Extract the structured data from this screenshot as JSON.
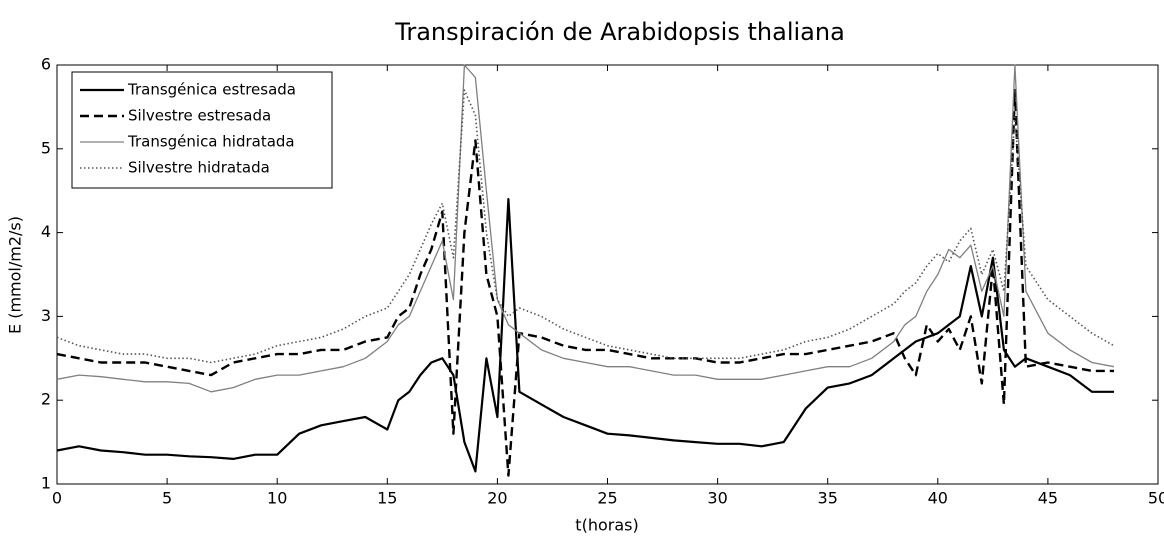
{
  "chart_data": {
    "type": "line",
    "title": "Transpiración de Arabidopsis thaliana",
    "xlabel": "t(horas)",
    "ylabel": "E (mmol/m2/s)",
    "x": [
      0,
      1,
      2,
      3,
      4,
      5,
      6,
      7,
      8,
      9,
      10,
      11,
      12,
      13,
      14,
      15,
      15.5,
      16,
      16.5,
      17,
      17.5,
      18,
      18.5,
      19,
      19.5,
      20,
      20.5,
      21,
      22,
      23,
      24,
      25,
      26,
      27,
      28,
      29,
      30,
      31,
      32,
      33,
      34,
      35,
      36,
      37,
      38,
      38.5,
      39,
      39.5,
      40,
      40.5,
      41,
      41.5,
      42,
      42.5,
      43,
      43.5,
      44,
      45,
      46,
      47,
      48
    ],
    "series": [
      {
        "name": "Transgénica estresada",
        "color": "#000000",
        "dash": "solid",
        "width": 2.2,
        "values": [
          1.4,
          1.45,
          1.4,
          1.38,
          1.35,
          1.35,
          1.33,
          1.32,
          1.3,
          1.35,
          1.35,
          1.6,
          1.7,
          1.75,
          1.8,
          1.65,
          2.0,
          2.1,
          2.3,
          2.45,
          2.5,
          2.3,
          1.5,
          1.15,
          2.5,
          1.8,
          4.4,
          2.1,
          1.95,
          1.8,
          1.7,
          1.6,
          1.58,
          1.55,
          1.52,
          1.5,
          1.48,
          1.48,
          1.45,
          1.5,
          1.9,
          2.15,
          2.2,
          2.3,
          2.5,
          2.6,
          2.7,
          2.75,
          2.8,
          2.9,
          3.0,
          3.6,
          3.0,
          3.7,
          2.6,
          2.4,
          2.5,
          2.4,
          2.3,
          2.1,
          2.1
        ]
      },
      {
        "name": "Silvestre estresada",
        "color": "#000000",
        "dash": "dashed",
        "width": 2.4,
        "values": [
          2.55,
          2.5,
          2.45,
          2.45,
          2.45,
          2.4,
          2.35,
          2.3,
          2.45,
          2.5,
          2.55,
          2.55,
          2.6,
          2.6,
          2.7,
          2.75,
          3.0,
          3.1,
          3.5,
          3.8,
          4.25,
          1.6,
          4.0,
          5.1,
          3.5,
          3.0,
          1.1,
          2.8,
          2.75,
          2.65,
          2.6,
          2.6,
          2.55,
          2.5,
          2.5,
          2.5,
          2.45,
          2.45,
          2.5,
          2.55,
          2.55,
          2.6,
          2.65,
          2.7,
          2.8,
          2.5,
          2.3,
          2.9,
          2.7,
          2.85,
          2.6,
          3.0,
          2.2,
          3.6,
          1.95,
          5.7,
          2.4,
          2.45,
          2.4,
          2.35,
          2.35
        ]
      },
      {
        "name": "Transgénica hidratada",
        "color": "#808080",
        "dash": "solid",
        "width": 1.3,
        "values": [
          2.25,
          2.3,
          2.28,
          2.25,
          2.22,
          2.22,
          2.2,
          2.1,
          2.15,
          2.25,
          2.3,
          2.3,
          2.35,
          2.4,
          2.5,
          2.7,
          2.9,
          3.0,
          3.3,
          3.6,
          3.9,
          3.2,
          6.0,
          5.85,
          4.5,
          3.2,
          2.9,
          2.8,
          2.6,
          2.5,
          2.45,
          2.4,
          2.4,
          2.35,
          2.3,
          2.3,
          2.25,
          2.25,
          2.25,
          2.3,
          2.35,
          2.4,
          2.4,
          2.5,
          2.7,
          2.9,
          3.0,
          3.3,
          3.5,
          3.8,
          3.7,
          3.85,
          3.3,
          3.6,
          3.0,
          6.0,
          3.3,
          2.8,
          2.6,
          2.45,
          2.4
        ]
      },
      {
        "name": "Silvestre hidratada",
        "color": "#555555",
        "dash": "dotted",
        "width": 1.6,
        "values": [
          2.75,
          2.65,
          2.6,
          2.55,
          2.55,
          2.5,
          2.5,
          2.45,
          2.5,
          2.55,
          2.65,
          2.7,
          2.75,
          2.85,
          3.0,
          3.1,
          3.3,
          3.5,
          3.8,
          4.1,
          4.35,
          3.7,
          5.7,
          5.4,
          4.0,
          3.2,
          3.0,
          3.1,
          3.0,
          2.85,
          2.75,
          2.65,
          2.6,
          2.55,
          2.5,
          2.5,
          2.5,
          2.5,
          2.55,
          2.6,
          2.7,
          2.75,
          2.85,
          3.0,
          3.15,
          3.3,
          3.4,
          3.6,
          3.75,
          3.65,
          3.9,
          4.05,
          3.5,
          3.8,
          3.3,
          5.4,
          3.6,
          3.2,
          3.0,
          2.8,
          2.65
        ]
      }
    ],
    "xlim": [
      0,
      50
    ],
    "xticks": [
      0,
      5,
      10,
      15,
      20,
      25,
      30,
      35,
      40,
      45,
      50
    ],
    "ylim": [
      1,
      6
    ],
    "yticks": [
      1,
      2,
      3,
      4,
      5,
      6
    ],
    "legend": "upper left",
    "grid": false
  }
}
